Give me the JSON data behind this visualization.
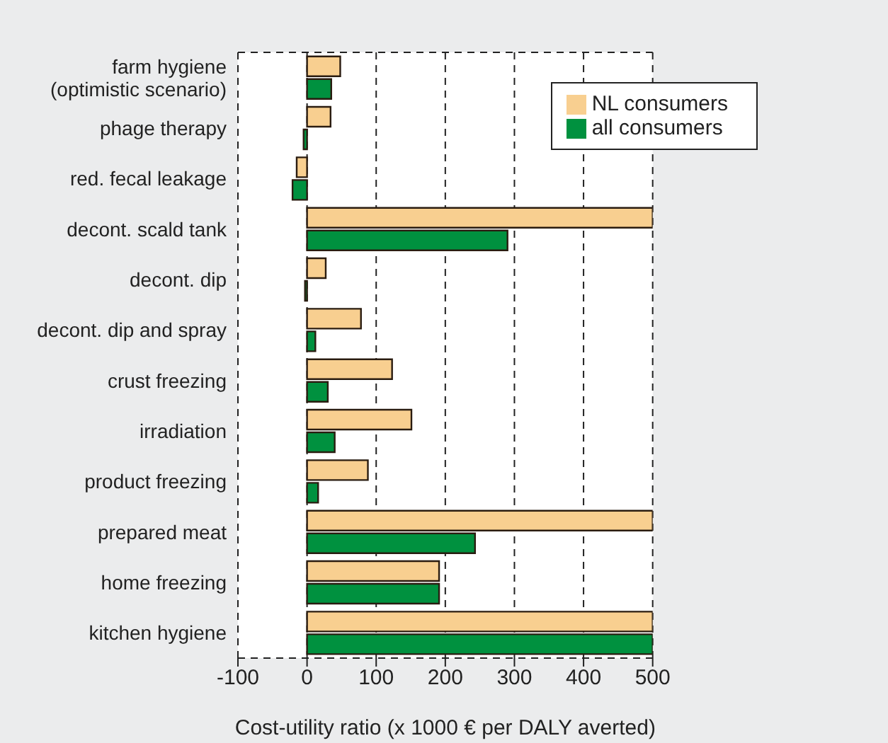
{
  "chart_data": {
    "type": "bar",
    "orientation": "horizontal",
    "xlabel": "Cost-utility ratio (x 1000 € per DALY averted)",
    "categories": [
      "farm hygiene (optimistic scenario)",
      "phage therapy",
      "red. fecal leakage",
      "decont. scald tank",
      "decont. dip",
      "decont. dip and spray",
      "crust freezing",
      "irradiation",
      "product freezing",
      "prepared meat",
      "home freezing",
      "kitchen hygiene"
    ],
    "series": [
      {
        "name": "NL consumers",
        "color": "#f8cf90",
        "values": [
          48,
          34,
          -15,
          500,
          27,
          78,
          123,
          151,
          88,
          500,
          191,
          500
        ]
      },
      {
        "name": "all consumers",
        "color": "#00913f",
        "values": [
          35,
          -5,
          -21,
          290,
          -3,
          12,
          30,
          40,
          16,
          243,
          191,
          500
        ]
      }
    ],
    "xlim": [
      -100,
      500
    ],
    "xticks": [
      -100,
      0,
      100,
      200,
      300,
      400,
      500
    ],
    "grid": "x",
    "legend": "top right"
  }
}
